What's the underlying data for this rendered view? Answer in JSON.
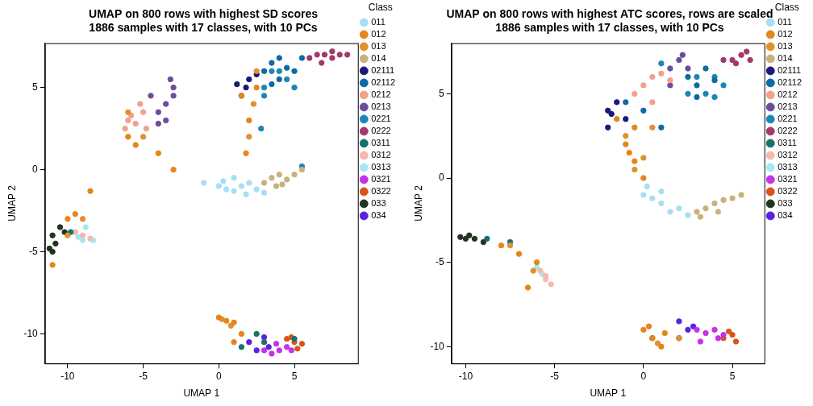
{
  "chart_data": [
    {
      "type": "scatter",
      "title": "UMAP on 800 rows with highest SD scores",
      "subtitle": "1886 samples with 17 classes, with 10 PCs",
      "x_label": "UMAP 1",
      "y_label": "UMAP 2",
      "legend_title": "Class",
      "legend": "right",
      "grid": false,
      "marker": "circle",
      "xlim": [
        -11.5,
        9.2
      ],
      "xticks": [
        -10,
        -5,
        0,
        5
      ],
      "ylim": [
        -11.8,
        7.7
      ],
      "yticks": [
        -10,
        -5,
        0,
        5
      ],
      "series": [
        {
          "name": "011",
          "color": "#a6dff4",
          "x": [
            0,
            0.5,
            1,
            1.5,
            2,
            2.5,
            1,
            0.3,
            3,
            1.8,
            -1
          ],
          "values": [
            -1,
            -1.2,
            -1.3,
            -1,
            -0.8,
            -1.2,
            -0.5,
            -0.7,
            -1.4,
            -1.5,
            -0.8
          ]
        },
        {
          "name": "012",
          "color": "#e5861a",
          "x": [
            0,
            0.5,
            1,
            1.5,
            1,
            -10,
            -9.5,
            -8.5,
            -11,
            -6,
            -5.5,
            -4,
            -3,
            1.5,
            2,
            1.8,
            2.5
          ],
          "values": [
            -9,
            -9.2,
            -9.3,
            -10,
            -10.5,
            -3,
            -2.7,
            -1.3,
            -5.8,
            2,
            1.5,
            1,
            0,
            4.5,
            3,
            1,
            5
          ]
        },
        {
          "name": "013",
          "color": "#e0922e",
          "x": [
            0.2,
            0.8,
            -10,
            -9,
            -6,
            -5,
            2,
            2.3,
            2.5
          ],
          "values": [
            -9.1,
            -9.5,
            -4,
            -3,
            3.5,
            2,
            2,
            4,
            6
          ]
        },
        {
          "name": "014",
          "color": "#c8b27c",
          "x": [
            3,
            3.5,
            4,
            4.5,
            3.8,
            5,
            4.2,
            5.5
          ],
          "values": [
            -0.8,
            -0.5,
            -0.3,
            -0.6,
            -1,
            -0.3,
            -0.9,
            0
          ]
        },
        {
          "name": "02111",
          "color": "#1a1a78",
          "x": [
            1.5,
            1.8,
            2,
            2.5,
            1.2
          ],
          "values": [
            4.5,
            5,
            5.5,
            5.8,
            5.2
          ]
        },
        {
          "name": "02112",
          "color": "#0c6aa6",
          "x": [
            3,
            3.5,
            4,
            4.5,
            5,
            4,
            3.5,
            5.5
          ],
          "values": [
            6,
            6.5,
            6.8,
            6.2,
            6,
            5.5,
            5.2,
            6.8
          ]
        },
        {
          "name": "0212",
          "color": "#f4a08a",
          "x": [
            -6,
            -5.5,
            -5,
            -5.8,
            -4.8,
            -5.2,
            -6.2
          ],
          "values": [
            3,
            2.8,
            3.5,
            3.3,
            2.5,
            4,
            2.5
          ]
        },
        {
          "name": "0213",
          "color": "#6b4d9e",
          "x": [
            -4,
            -3.5,
            -3,
            -3.2,
            -3.5,
            -4.5,
            -3,
            -4
          ],
          "values": [
            3.5,
            4,
            5,
            5.5,
            3,
            4.5,
            4.5,
            2.8
          ]
        },
        {
          "name": "0221",
          "color": "#1d86b8",
          "x": [
            3,
            4,
            4.5,
            3.5,
            3,
            5,
            2.8,
            5.5
          ],
          "values": [
            5,
            6,
            5.5,
            6,
            4.5,
            5,
            2.5,
            0.2
          ]
        },
        {
          "name": "0222",
          "color": "#a03a6a",
          "x": [
            6,
            6.5,
            7,
            7.5,
            8,
            8.5,
            6.8,
            7.5
          ],
          "values": [
            6.8,
            7,
            7,
            6.8,
            7,
            7,
            6.5,
            7.2
          ]
        },
        {
          "name": "0311",
          "color": "#1a6f6f",
          "x": [
            3,
            2.5,
            1.5,
            5,
            -9.8
          ],
          "values": [
            -10.5,
            -10,
            -10.8,
            -10.3,
            -3.8
          ]
        },
        {
          "name": "0312",
          "color": "#f7b8b0",
          "x": [
            -9,
            -9.5,
            -8.5
          ],
          "values": [
            -4,
            -3.8,
            -4.2
          ]
        },
        {
          "name": "0313",
          "color": "#a8e8ee",
          "x": [
            -9,
            -8.3,
            -8.8,
            -9.3
          ],
          "values": [
            -4.3,
            -4.3,
            -3.5,
            -4.1
          ]
        },
        {
          "name": "0321",
          "color": "#c631e8",
          "x": [
            3,
            3.5,
            4,
            4.5,
            3.8,
            4.8
          ],
          "values": [
            -11,
            -11.2,
            -11,
            -10.8,
            -10.6,
            -11
          ]
        },
        {
          "name": "0322",
          "color": "#d9541a",
          "x": [
            5,
            5.5,
            4.5,
            5.2,
            4.8
          ],
          "values": [
            -10.5,
            -10.6,
            -10.3,
            -10.9,
            -10.2
          ]
        },
        {
          "name": "033",
          "color": "#223322",
          "x": [
            -11,
            -11,
            -10.5,
            -10.8,
            -10.2,
            -11.2
          ],
          "values": [
            -4,
            -5,
            -3.5,
            -4.5,
            -3.8,
            -4.8
          ]
        },
        {
          "name": "034",
          "color": "#5a22e0",
          "x": [
            2,
            2.5,
            3,
            3.3
          ],
          "values": [
            -10.5,
            -11,
            -10.2,
            -10.8
          ]
        }
      ]
    },
    {
      "type": "scatter",
      "title": "UMAP on 800 rows with highest ATC scores, rows are scaled",
      "subtitle": "1886 samples with 17 classes, with 10 PCs",
      "x_label": "UMAP 1",
      "y_label": "UMAP 2",
      "legend_title": "Class",
      "legend": "right",
      "grid": false,
      "marker": "circle",
      "xlim": [
        -10.8,
        6.8
      ],
      "xticks": [
        -10,
        -5,
        0,
        5
      ],
      "ylim": [
        -11,
        8
      ],
      "yticks": [
        -10,
        -5,
        0,
        5
      ],
      "series": [
        {
          "name": "011",
          "color": "#a6dff4",
          "x": [
            0,
            1,
            2,
            0.5,
            1.5,
            2.5,
            0.2,
            1
          ],
          "values": [
            -1,
            -1.5,
            -1.8,
            -1.2,
            -2,
            -2.2,
            -0.5,
            -0.8
          ]
        },
        {
          "name": "012",
          "color": "#e5861a",
          "x": [
            0,
            0.5,
            1,
            1.2,
            0.3,
            -8,
            -7,
            -6,
            -6.5,
            -1,
            -0.5,
            0,
            -0.8,
            -0.5,
            -1.5
          ],
          "values": [
            -9,
            -9.5,
            -10,
            -9.2,
            -8.8,
            -4,
            -4.5,
            -5,
            -6.5,
            2,
            1,
            0,
            1.5,
            3,
            3.5
          ]
        },
        {
          "name": "013",
          "color": "#e0922e",
          "x": [
            0.8,
            2,
            -7.5,
            -6.2,
            -0.5,
            0,
            -1,
            0.5
          ],
          "values": [
            -9.8,
            -9.5,
            -4,
            -5.5,
            0.5,
            1.2,
            2.5,
            3
          ]
        },
        {
          "name": "014",
          "color": "#c8b27c",
          "x": [
            3,
            3.5,
            4,
            4.5,
            5,
            5.5,
            3.2,
            4.2
          ],
          "values": [
            -2,
            -1.8,
            -1.5,
            -1.3,
            -1.2,
            -1,
            -2.3,
            -2
          ]
        },
        {
          "name": "02111",
          "color": "#1a1a78",
          "x": [
            -2,
            -2,
            -1.5,
            -1,
            -1.8
          ],
          "values": [
            3,
            4,
            4.5,
            3.5,
            3.8
          ]
        },
        {
          "name": "02112",
          "color": "#0c6aa6",
          "x": [
            -1,
            0,
            1,
            2.5,
            3,
            3.5,
            4,
            3
          ],
          "values": [
            4.5,
            4,
            3,
            6,
            5.5,
            6.5,
            5.8,
            4.8
          ]
        },
        {
          "name": "0212",
          "color": "#f4a08a",
          "x": [
            -0.5,
            0,
            0.5,
            1,
            1.5,
            0.5
          ],
          "values": [
            5,
            5.5,
            6,
            6.2,
            5.8,
            4.5
          ]
        },
        {
          "name": "0213",
          "color": "#6b4d9e",
          "x": [
            1.5,
            2,
            2.5,
            1.5,
            2.2
          ],
          "values": [
            6.5,
            7,
            6.5,
            5.5,
            7.3
          ]
        },
        {
          "name": "0221",
          "color": "#1d86b8",
          "x": [
            2.5,
            3,
            4,
            4.5,
            3.5,
            4,
            1
          ],
          "values": [
            5,
            6,
            6,
            5.5,
            5,
            4.8,
            6.8
          ]
        },
        {
          "name": "0222",
          "color": "#a03a6a",
          "x": [
            4.5,
            5,
            5.5,
            6,
            5.2,
            5.8
          ],
          "values": [
            7,
            7,
            7.3,
            7,
            6.8,
            7.5
          ]
        },
        {
          "name": "0311",
          "color": "#1a6f6f",
          "x": [
            -8.8,
            -7.5,
            0.5
          ],
          "values": [
            -3.6,
            -3.8,
            -9.5
          ]
        },
        {
          "name": "0312",
          "color": "#f7b8b0",
          "x": [
            -5.8,
            -5.5,
            -5.2,
            -5.5
          ],
          "values": [
            -5.5,
            -6,
            -6.3,
            -5.8
          ]
        },
        {
          "name": "0313",
          "color": "#a8e8ee",
          "x": [
            -6,
            -5.7
          ],
          "values": [
            -5.3,
            -5.7
          ]
        },
        {
          "name": "0321",
          "color": "#c631e8",
          "x": [
            3,
            3.5,
            4,
            4.2,
            3.2,
            4.5
          ],
          "values": [
            -9,
            -9.2,
            -9,
            -9.5,
            -9.7,
            -9.3
          ]
        },
        {
          "name": "0322",
          "color": "#d9541a",
          "x": [
            4.5,
            5,
            5.2,
            4.8
          ],
          "values": [
            -9.5,
            -9.3,
            -9.7,
            -9.1
          ]
        },
        {
          "name": "033",
          "color": "#223322",
          "x": [
            -10.3,
            -10,
            -9.5,
            -9,
            -9.8
          ],
          "values": [
            -3.5,
            -3.6,
            -3.6,
            -3.8,
            -3.4
          ]
        },
        {
          "name": "034",
          "color": "#5a22e0",
          "x": [
            2,
            2.5,
            2,
            2.8
          ],
          "values": [
            -8.5,
            -9,
            -9.5,
            -8.8
          ]
        }
      ]
    }
  ]
}
